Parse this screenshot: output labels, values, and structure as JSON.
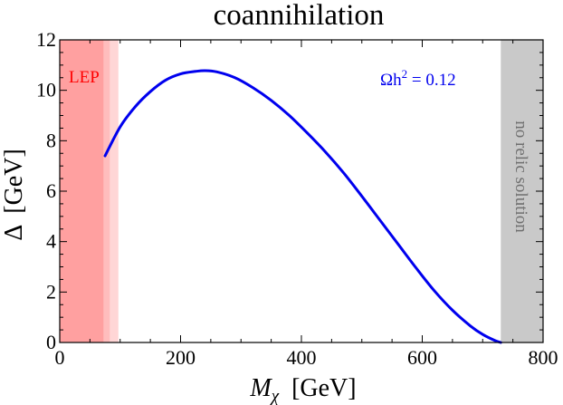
{
  "chart_data": {
    "type": "line",
    "title": "coannihilation",
    "xlabel_symbol": "M",
    "xlabel_subscript": "χ",
    "xlabel_unit": "[GeV]",
    "ylabel_symbol": "Δ",
    "ylabel_unit": "[GeV]",
    "xlim": [
      0,
      800
    ],
    "ylim": [
      0,
      12
    ],
    "xticks": [
      0,
      200,
      400,
      600,
      800
    ],
    "yticks": [
      0,
      2,
      4,
      6,
      8,
      10,
      12
    ],
    "grid": false,
    "series": [
      {
        "name": "Ωh² = 0.12",
        "color": "#0000ee",
        "x": [
          75,
          100,
          125,
          150,
          175,
          200,
          225,
          240,
          260,
          290,
          320,
          350,
          380,
          410,
          440,
          470,
          500,
          530,
          560,
          590,
          620,
          650,
          680,
          700,
          720,
          730
        ],
        "y": [
          7.4,
          8.55,
          9.35,
          9.95,
          10.4,
          10.65,
          10.75,
          10.78,
          10.73,
          10.5,
          10.1,
          9.6,
          9.0,
          8.3,
          7.55,
          6.72,
          5.8,
          4.85,
          3.9,
          2.95,
          2.05,
          1.28,
          0.65,
          0.32,
          0.08,
          0.0
        ]
      }
    ],
    "regions": [
      {
        "label": "LEP",
        "x_from": 0,
        "x_to": 73,
        "color": "#ffa0a0",
        "label_color": "#ff0000"
      },
      {
        "label": "",
        "x_from": 73,
        "x_to": 83,
        "color": "#ffbdbd"
      },
      {
        "label": "",
        "x_from": 83,
        "x_to": 97,
        "color": "#ffd6d6"
      },
      {
        "label": "no relic solution",
        "x_from": 730,
        "x_to": 800,
        "color": "#c9c9c9",
        "label_color": "#707070"
      }
    ],
    "annotation": {
      "text_main": "Ωh",
      "text_sup": "2",
      "text_tail": " = 0.12",
      "color": "#0000ee"
    }
  }
}
